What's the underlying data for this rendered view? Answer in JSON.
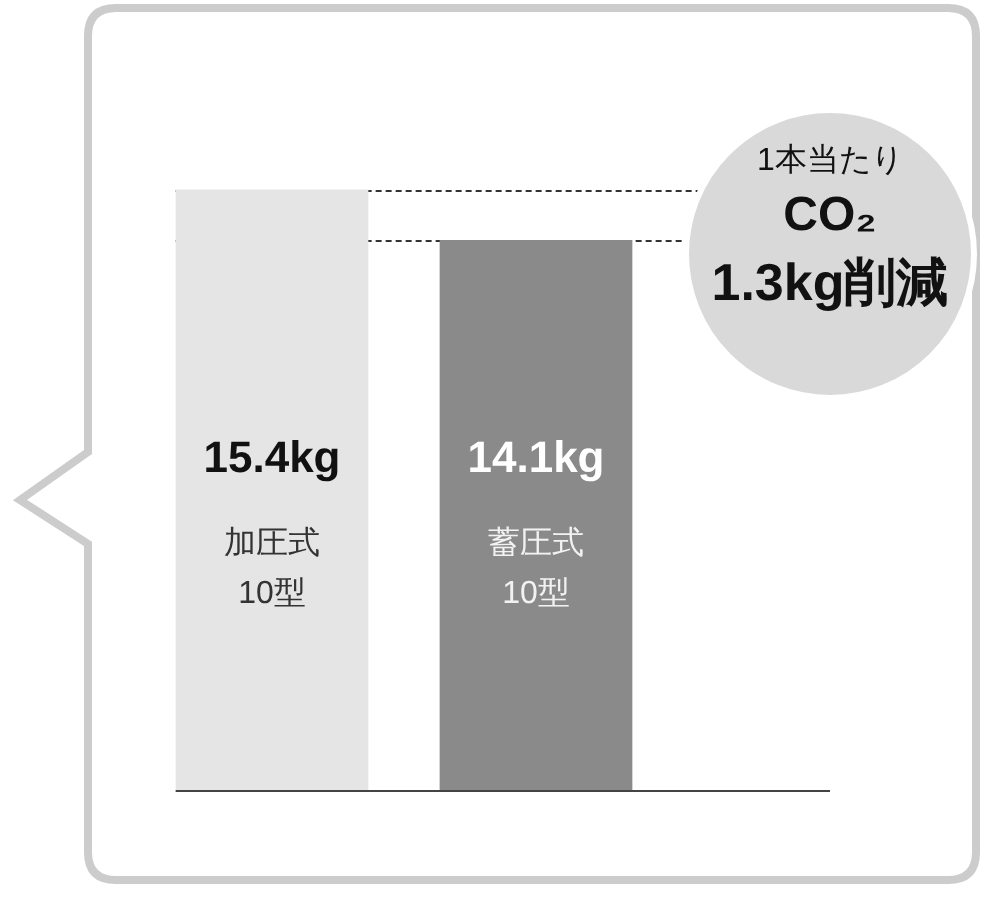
{
  "chart_data": {
    "type": "bar",
    "categories": [
      "加圧式\n10型",
      "蓄圧式\n10型"
    ],
    "values": [
      15.4,
      14.1
    ],
    "colors": [
      "#e5e5e5",
      "#8a8a8a"
    ],
    "value_labels": [
      "15.4kg",
      "14.1kg"
    ],
    "ref_lines": [
      {
        "axis": "y",
        "value": 15.4,
        "color": "#333333",
        "line_style": "dashed"
      },
      {
        "axis": "y",
        "value": 14.1,
        "color": "#333333",
        "line_style": "dashed"
      }
    ],
    "annotations": [
      "1本当たり",
      "CO₂",
      "1.3kg削減"
    ],
    "legend": false
  }
}
